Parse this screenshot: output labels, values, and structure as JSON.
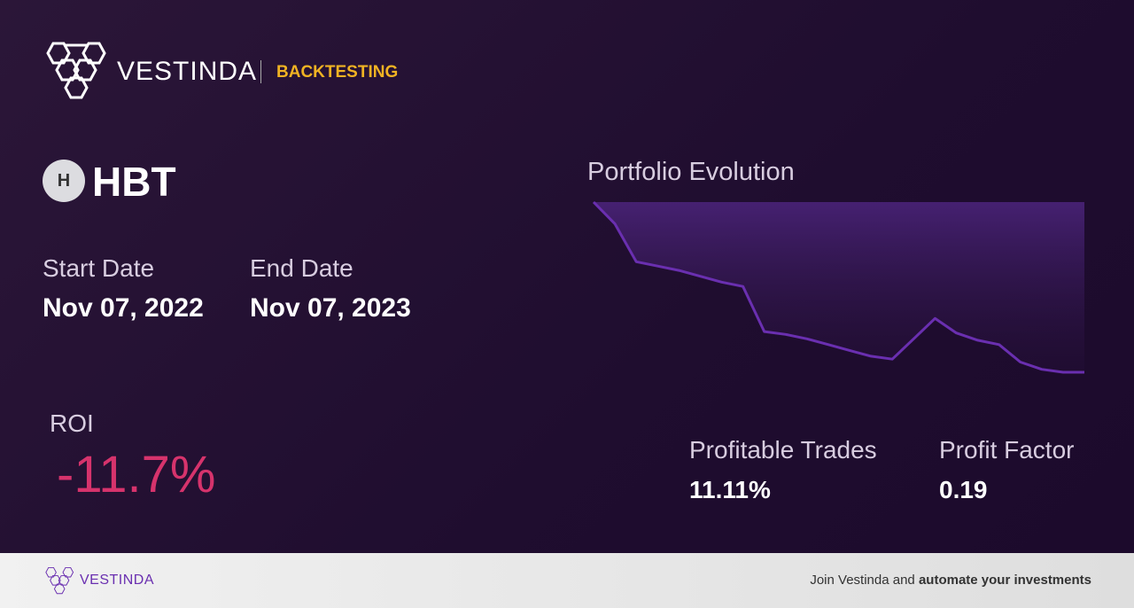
{
  "header": {
    "brand": "VESTINDA",
    "tag": "BACKTESTING"
  },
  "asset": {
    "icon_letter": "H",
    "ticker": "HBT"
  },
  "start_date": {
    "label": "Start Date",
    "value": "Nov 07, 2022"
  },
  "end_date": {
    "label": "End Date",
    "value": "Nov 07, 2023"
  },
  "roi": {
    "label": "ROI",
    "value": "-11.7%"
  },
  "stats": [
    {
      "label": "Profitable Trades",
      "value": "11.11%"
    },
    {
      "label": "Profit Factor",
      "value": "0.19"
    }
  ],
  "chart_data": {
    "type": "area",
    "title": "Portfolio Evolution",
    "color": "#6a2fb0",
    "values": [
      100,
      98.5,
      95.9,
      95.6,
      95.3,
      94.9,
      94.5,
      94.2,
      91.1,
      90.9,
      90.6,
      90.2,
      89.8,
      89.4,
      89.2,
      90.6,
      92.0,
      91.0,
      90.5,
      90.2,
      89.0,
      88.5,
      88.3,
      88.3
    ]
  },
  "footer": {
    "brand": "VESTINDA",
    "text": "Join Vestinda and",
    "bold": "automate your investments"
  }
}
